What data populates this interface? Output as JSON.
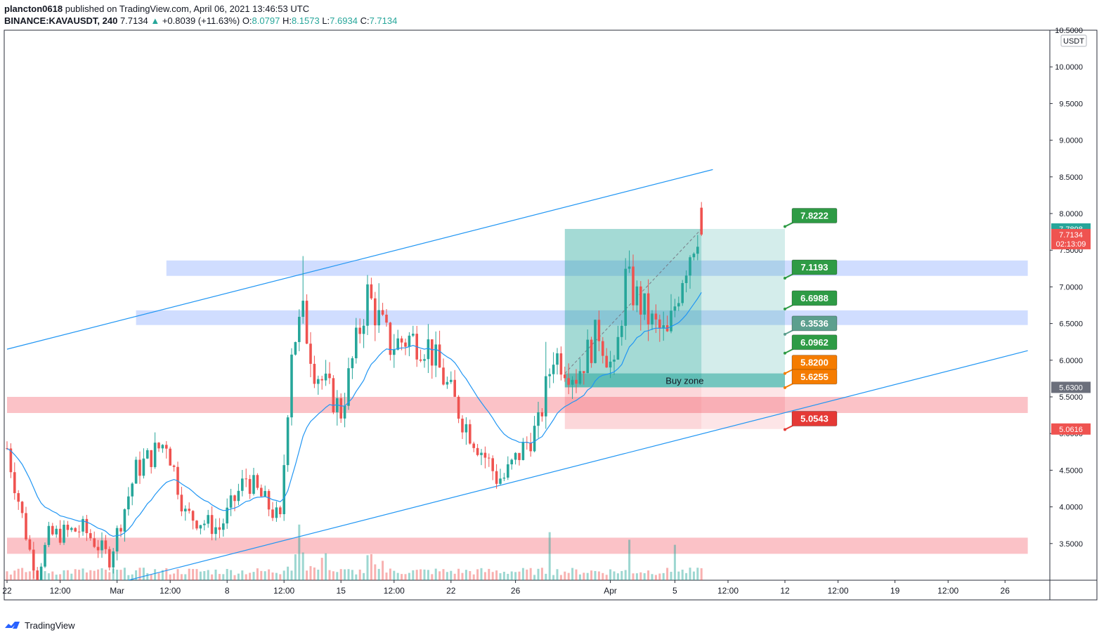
{
  "header": {
    "publisher": "plancton0618",
    "published_text": "published on TradingView.com, April 06, 2021 13:46:53 UTC",
    "symbol": "BINANCE:KAVAUSDT, 240",
    "last": "7.7134",
    "change_arrow": "▲",
    "change": "+0.8039 (+11.63%)",
    "o_label": "O:",
    "o": "8.0797",
    "h_label": "H:",
    "h": "8.1573",
    "l_label": "L:",
    "l": "7.6934",
    "c_label": "C:",
    "c": "7.7134"
  },
  "footer": {
    "brand": "TradingView",
    "logo_icon": "tradingview-logo-icon"
  },
  "colors": {
    "up": "#26a69a",
    "down": "#ef5350",
    "trend": "#2196f3",
    "ema": "#2196f3",
    "target_fill": "#26a69a",
    "stop_fill": "#f23645"
  },
  "chart_data": {
    "type": "candlestick",
    "symbol": "BINANCE:KAVAUSDT",
    "timeframe": "240",
    "y_axis": {
      "unit": "USDT",
      "range": [
        3.0,
        10.5
      ],
      "ticks": [
        "10.5000",
        "10.0000",
        "9.5000",
        "9.0000",
        "8.5000",
        "8.0000",
        "7.5000",
        "7.0000",
        "6.5000",
        "6.0000",
        "5.5000",
        "5.0000",
        "4.5000",
        "4.0000",
        "3.5000"
      ]
    },
    "x_axis": {
      "ticks": [
        {
          "label": "22",
          "i": 0
        },
        {
          "label": "12:00",
          "i": 14
        },
        {
          "label": "Mar",
          "i": 29
        },
        {
          "label": "12:00",
          "i": 43
        },
        {
          "label": "8",
          "i": 58
        },
        {
          "label": "12:00",
          "i": 73
        },
        {
          "label": "15",
          "i": 88
        },
        {
          "label": "12:00",
          "i": 102
        },
        {
          "label": "22",
          "i": 117
        },
        {
          "label": "26",
          "i": 134
        },
        {
          "label": "Apr",
          "i": 159
        },
        {
          "label": "5",
          "i": 176
        },
        {
          "label": "12:00",
          "i": 190
        },
        {
          "label": "12",
          "i": 205
        },
        {
          "label": "12:00",
          "i": 219
        },
        {
          "label": "19",
          "i": 234
        },
        {
          "label": "12:00",
          "i": 248
        },
        {
          "label": "26",
          "i": 263
        }
      ]
    },
    "price_path": [
      [
        0,
        4.8
      ],
      [
        6,
        3.4
      ],
      [
        8,
        3.1
      ],
      [
        11,
        3.6
      ],
      [
        20,
        3.7
      ],
      [
        27,
        3.3
      ],
      [
        34,
        4.5
      ],
      [
        42,
        4.9
      ],
      [
        47,
        3.9
      ],
      [
        56,
        3.7
      ],
      [
        63,
        4.4
      ],
      [
        72,
        3.8
      ],
      [
        75,
        6.2
      ],
      [
        78,
        6.6
      ],
      [
        81,
        5.9
      ],
      [
        88,
        5.3
      ],
      [
        95,
        6.9
      ],
      [
        101,
        6.2
      ],
      [
        106,
        6.3
      ],
      [
        111,
        6.2
      ],
      [
        120,
        5.2
      ],
      [
        127,
        4.6
      ],
      [
        129,
        4.4
      ],
      [
        131,
        4.4
      ],
      [
        136,
        4.8
      ],
      [
        140,
        5.1
      ],
      [
        144,
        6.1
      ],
      [
        150,
        5.8
      ],
      [
        156,
        6.4
      ],
      [
        160,
        5.8
      ],
      [
        163,
        7.1
      ],
      [
        170,
        6.5
      ],
      [
        174,
        6.3
      ],
      [
        178,
        7.2
      ],
      [
        182,
        7.8
      ],
      [
        183,
        7.71
      ]
    ],
    "last_candle": {
      "open": 8.0797,
      "high": 8.1573,
      "low": 7.6934,
      "close": 7.7134
    },
    "volume_spikes": [
      {
        "i": 77,
        "v": 2.2
      },
      {
        "i": 143,
        "v": 1.9
      },
      {
        "i": 164,
        "v": 1.6
      },
      {
        "i": 176,
        "v": 1.4
      }
    ],
    "ema_label": "",
    "trend_lines": [
      {
        "from": [
          0,
          6.15
        ],
        "to": [
          186,
          8.6
        ]
      },
      {
        "from": [
          32,
          3.0
        ],
        "to": [
          269,
          6.13
        ]
      }
    ],
    "zones": [
      {
        "type": "resistance",
        "color": "blue",
        "from_i": 42,
        "to_i": 269,
        "top": 7.36,
        "bottom": 7.15
      },
      {
        "type": "resistance",
        "color": "blue",
        "from_i": 34,
        "to_i": 269,
        "top": 6.68,
        "bottom": 6.48
      },
      {
        "type": "support",
        "color": "red",
        "from_i": 0,
        "to_i": 269,
        "top": 5.5,
        "bottom": 5.28
      },
      {
        "type": "support",
        "color": "red",
        "from_i": 0,
        "to_i": 269,
        "top": 3.58,
        "bottom": 3.36
      }
    ],
    "position": {
      "entry": 5.63,
      "target": 7.7898,
      "stop": 5.0616,
      "from_i": 147,
      "entry_i": 183,
      "to_i": 205,
      "buy_zone": {
        "top": 5.82,
        "bottom": 5.63,
        "label": "Buy zone"
      }
    },
    "targets": [
      {
        "label": "7.8222",
        "value": 7.8222,
        "color": "#2e9b45"
      },
      {
        "label": "7.1193",
        "value": 7.1193,
        "color": "#2e9b45"
      },
      {
        "label": "6.6988",
        "value": 6.6988,
        "color": "#2e9b45"
      },
      {
        "label": "6.3536",
        "value": 6.3536,
        "color": "#5c9f8e"
      },
      {
        "label": "6.0962",
        "value": 6.0962,
        "color": "#2e9b45"
      },
      {
        "label": "5.8200",
        "value": 5.82,
        "color": "#f57c00"
      },
      {
        "label": "5.6255",
        "value": 5.6255,
        "color": "#f57c00"
      },
      {
        "label": "5.0543",
        "value": 5.0543,
        "color": "#e53935"
      }
    ],
    "price_badges": [
      {
        "label": "7.7898",
        "value": 7.7898,
        "color": "#26a69a"
      },
      {
        "label": "7.7134",
        "value": 7.7134,
        "color": "#ef5350",
        "countdown": "02:13:09"
      },
      {
        "label": "5.6300",
        "value": 5.63,
        "color": "#6b6f7b"
      },
      {
        "label": "5.0616",
        "value": 5.0616,
        "color": "#ef5350"
      }
    ]
  }
}
